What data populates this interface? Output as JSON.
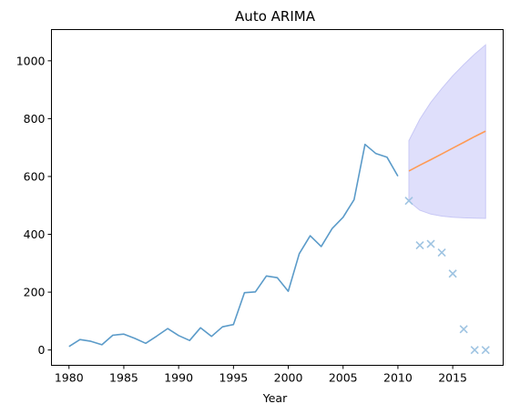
{
  "chart_data": {
    "type": "line",
    "title": "Auto ARIMA",
    "xlabel": "Year",
    "ylabel": "",
    "xlim": [
      1978.4,
      2019.6
    ],
    "ylim": [
      -53,
      1108
    ],
    "xticks": [
      1980,
      1985,
      1990,
      1995,
      2000,
      2005,
      2010,
      2015
    ],
    "yticks": [
      0,
      200,
      400,
      600,
      800,
      1000
    ],
    "grid": false,
    "legend": "none",
    "colors": {
      "history": "#5b9bc9",
      "forecast": "#ff9a55",
      "interval_fill": "#dcdcfb",
      "interval_edge": "#c8c8f5",
      "actual": "#9fc4e2"
    },
    "history": {
      "x": [
        1980,
        1981,
        1982,
        1983,
        1984,
        1985,
        1986,
        1987,
        1988,
        1989,
        1990,
        1991,
        1992,
        1993,
        1994,
        1995,
        1996,
        1997,
        1998,
        1999,
        2000,
        2001,
        2002,
        2003,
        2004,
        2005,
        2006,
        2007,
        2008,
        2009,
        2010
      ],
      "y": [
        12,
        36,
        30,
        18,
        51,
        55,
        40,
        23,
        48,
        74,
        50,
        33,
        77,
        47,
        80,
        88,
        198,
        201,
        256,
        250,
        203,
        333,
        395,
        358,
        420,
        459,
        520,
        711,
        679,
        667,
        601
      ]
    },
    "forecast": {
      "x": [
        2011,
        2012,
        2013,
        2014,
        2015,
        2016,
        2017,
        2018
      ],
      "y": [
        619,
        639,
        658,
        678,
        698,
        718,
        738,
        757
      ]
    },
    "interval": {
      "x": [
        2011,
        2012,
        2013,
        2014,
        2015,
        2016,
        2017,
        2018
      ],
      "lower": [
        514,
        483,
        470,
        463,
        459,
        457,
        456,
        455
      ],
      "upper": [
        724,
        798,
        856,
        904,
        948,
        987,
        1023,
        1055
      ]
    },
    "actual": {
      "marker": "x",
      "x": [
        2011,
        2012,
        2013,
        2014,
        2015,
        2016,
        2017,
        2018
      ],
      "y": [
        516,
        362,
        367,
        337,
        264,
        72,
        0,
        0
      ]
    }
  }
}
